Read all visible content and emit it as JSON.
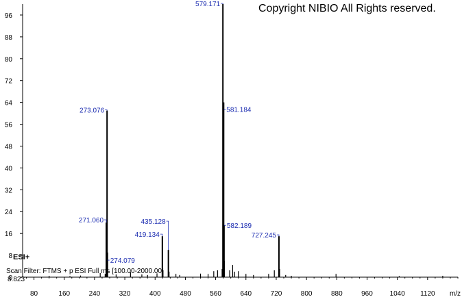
{
  "copyright": "Copyright NIBIO All Rights reserved.",
  "ion_mode": "ESI+",
  "scan_filter": "Scan Filter: FTMS + p ESI Full ms [100.00-2000.00]",
  "retention_time": "8.823",
  "colors": {
    "axis": "#000000",
    "peak": "#000000",
    "annotation": "#1a2bb0"
  },
  "chart_data": {
    "type": "bar",
    "xlabel": "m/z",
    "ylabel": "",
    "xlim": [
      50,
      1200
    ],
    "ylim": [
      0,
      100
    ],
    "x_ticks": [
      80,
      160,
      240,
      320,
      400,
      480,
      560,
      640,
      720,
      800,
      880,
      960,
      1040,
      1120
    ],
    "y_ticks": [
      0,
      8,
      16,
      24,
      32,
      40,
      48,
      56,
      64,
      72,
      80,
      88,
      96
    ],
    "grid": false,
    "labeled_peaks": [
      {
        "mz": 579.171,
        "label": "579.171",
        "intensity": 100
      },
      {
        "mz": 273.076,
        "label": "273.076",
        "intensity": 61
      },
      {
        "mz": 581.184,
        "label": "581.184",
        "intensity": 64
      },
      {
        "mz": 271.06,
        "label": "271.060",
        "intensity": 20
      },
      {
        "mz": 582.189,
        "label": "582.189",
        "intensity": 19
      },
      {
        "mz": 435.128,
        "label": "435.128",
        "intensity": 10
      },
      {
        "mz": 419.134,
        "label": "419.134",
        "intensity": 15
      },
      {
        "mz": 727.245,
        "label": "727.245",
        "intensity": 15
      },
      {
        "mz": 274.079,
        "label": "274.079",
        "intensity": 9
      }
    ],
    "minor_peaks": [
      {
        "mz": 120,
        "intensity": 0.5
      },
      {
        "mz": 175,
        "intensity": 0.4
      },
      {
        "mz": 203,
        "intensity": 0.6
      },
      {
        "mz": 255,
        "intensity": 1.5
      },
      {
        "mz": 268,
        "intensity": 1.2
      },
      {
        "mz": 297,
        "intensity": 1
      },
      {
        "mz": 335,
        "intensity": 1.8
      },
      {
        "mz": 365,
        "intensity": 1
      },
      {
        "mz": 380,
        "intensity": 0.8
      },
      {
        "mz": 405,
        "intensity": 1.4
      },
      {
        "mz": 421,
        "intensity": 2.5
      },
      {
        "mz": 437,
        "intensity": 2
      },
      {
        "mz": 455,
        "intensity": 1.2
      },
      {
        "mz": 465,
        "intensity": 0.8
      },
      {
        "mz": 520,
        "intensity": 1.3
      },
      {
        "mz": 540,
        "intensity": 1.2
      },
      {
        "mz": 555,
        "intensity": 2.2
      },
      {
        "mz": 565,
        "intensity": 2.5
      },
      {
        "mz": 577,
        "intensity": 3
      },
      {
        "mz": 583,
        "intensity": 6
      },
      {
        "mz": 597,
        "intensity": 2.5
      },
      {
        "mz": 605,
        "intensity": 4.5
      },
      {
        "mz": 610,
        "intensity": 2
      },
      {
        "mz": 620,
        "intensity": 2.2
      },
      {
        "mz": 640,
        "intensity": 1.2
      },
      {
        "mz": 660,
        "intensity": 0.8
      },
      {
        "mz": 700,
        "intensity": 1.2
      },
      {
        "mz": 715,
        "intensity": 2.5
      },
      {
        "mz": 729,
        "intensity": 3
      },
      {
        "mz": 745,
        "intensity": 0.8
      },
      {
        "mz": 760,
        "intensity": 0.5
      },
      {
        "mz": 878,
        "intensity": 1.2
      },
      {
        "mz": 1045,
        "intensity": 0.4
      },
      {
        "mz": 1160,
        "intensity": 0.5
      }
    ]
  }
}
